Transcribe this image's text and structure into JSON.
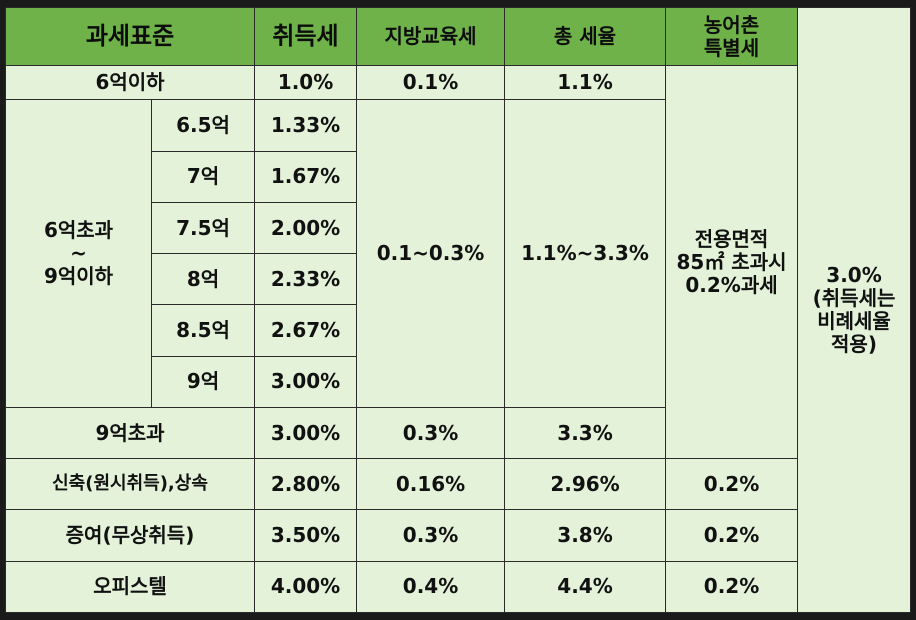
{
  "header": {
    "standard": "과세표준",
    "acquisition_tax": "취득세",
    "local_education_tax": "지방교육세",
    "total_rate": "총 세율",
    "rural_special_tax": "농어촌\n특별세"
  },
  "rows": {
    "under_600m": {
      "label": "6억이하",
      "acq": "1.0%",
      "edu": "0.1%",
      "total": "1.1%"
    },
    "range_600_900m": {
      "label": "6억초과\n~\n9억이하",
      "edu": "0.1~0.3%",
      "total": "1.1%~3.3%",
      "sub": [
        {
          "label": "6.5억",
          "acq": "1.33%"
        },
        {
          "label": "7억",
          "acq": "1.67%"
        },
        {
          "label": "7.5억",
          "acq": "2.00%"
        },
        {
          "label": "8억",
          "acq": "2.33%"
        },
        {
          "label": "8.5억",
          "acq": "2.67%"
        },
        {
          "label": "9억",
          "acq": "3.00%"
        }
      ]
    },
    "over_900m": {
      "label": "9억초과",
      "acq": "3.00%",
      "edu": "0.3%",
      "total": "3.3%"
    },
    "new_inheritance": {
      "label": "신축(원시취득),상속",
      "acq": "2.80%",
      "edu": "0.16%",
      "total": "2.96%",
      "rural": "0.2%"
    },
    "gift": {
      "label": "증여(무상취득)",
      "acq": "3.50%",
      "edu": "0.3%",
      "total": "3.8%",
      "rural": "0.2%"
    },
    "officetel": {
      "label": "오피스텔",
      "acq": "4.00%",
      "edu": "0.4%",
      "total": "4.4%",
      "rural": "0.2%"
    }
  },
  "rural_note": "전용면적\n85㎡ 초과시\n0.2%과세",
  "rightmost_note": "3.0%\n(취득세는\n비례세율\n적용)"
}
